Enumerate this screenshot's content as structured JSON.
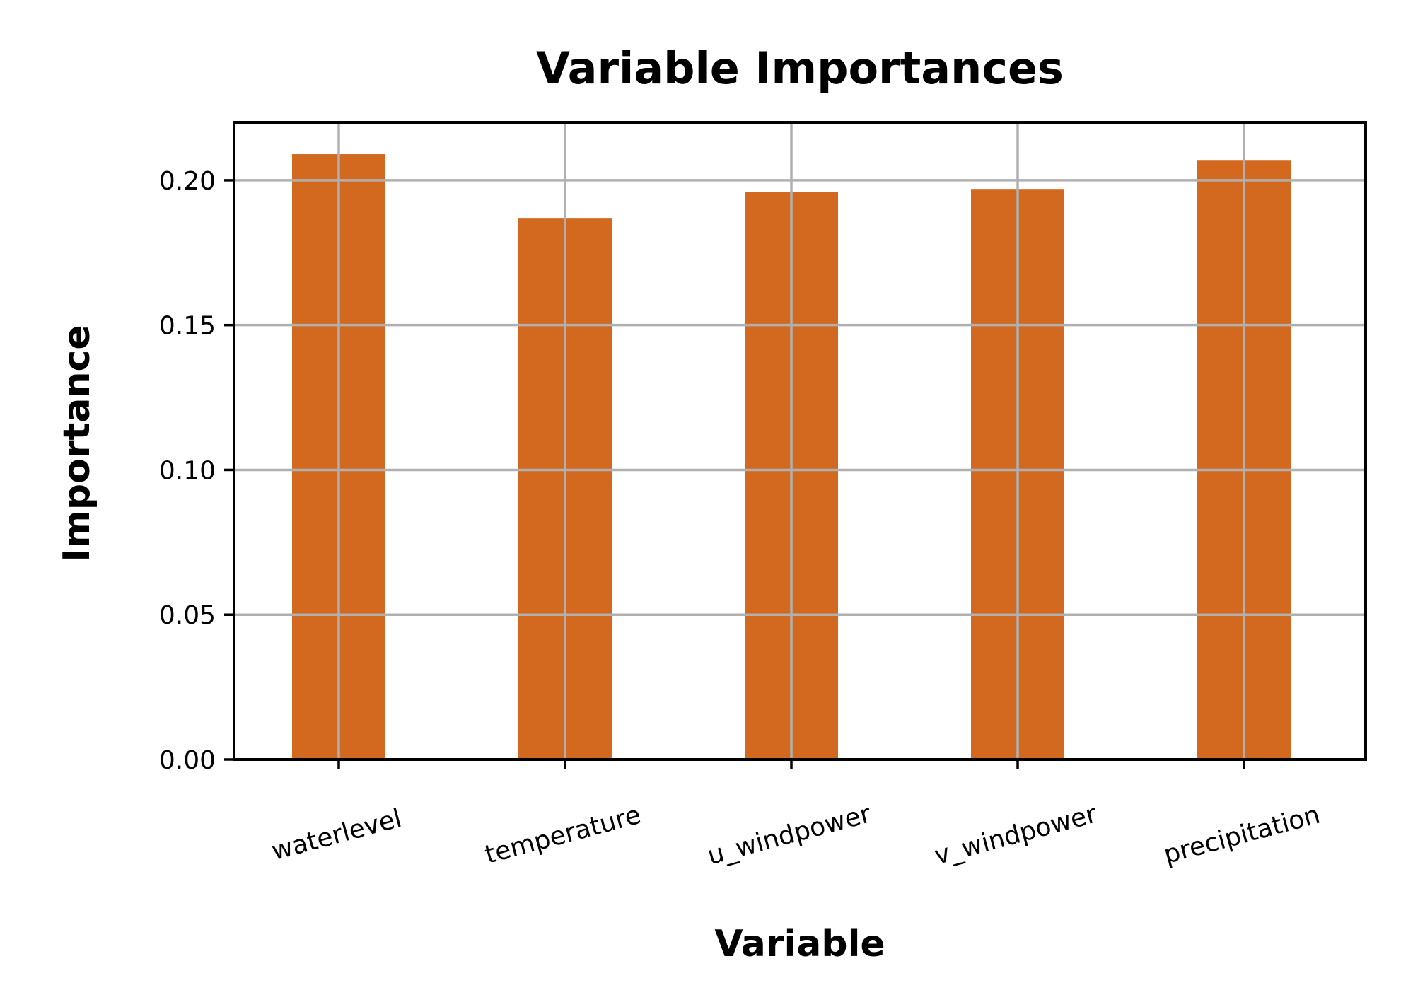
{
  "chart_data": {
    "type": "bar",
    "title": "Variable Importances",
    "xlabel": "Variable",
    "ylabel": "Importance",
    "categories": [
      "waterlevel",
      "temperature",
      "u_windpower",
      "v_windpower",
      "precipitation"
    ],
    "values": [
      0.209,
      0.187,
      0.196,
      0.197,
      0.207
    ],
    "ylim": [
      0,
      0.22
    ],
    "yticks": [
      0.0,
      0.05,
      0.1,
      0.15,
      0.2
    ],
    "ytick_labels": [
      "0.00",
      "0.05",
      "0.10",
      "0.15",
      "0.20"
    ],
    "grid": true,
    "legend": "none",
    "colors": {
      "bar": "#d2691e",
      "grid": "#b0b0b0",
      "axis": "#000000"
    }
  }
}
